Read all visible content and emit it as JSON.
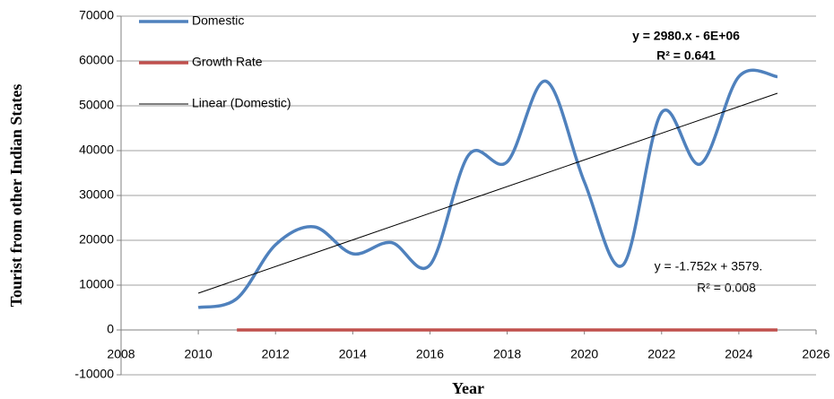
{
  "chart_data": {
    "type": "line",
    "ylabel": "Tourist from other Indian States",
    "xlabel": "Year",
    "xlim": [
      2008,
      2026
    ],
    "xticks": [
      2008,
      2010,
      2012,
      2014,
      2016,
      2018,
      2020,
      2022,
      2024,
      2026
    ],
    "ylim": [
      -10000,
      70000
    ],
    "yticks": [
      -10000,
      0,
      10000,
      20000,
      30000,
      40000,
      50000,
      60000,
      70000
    ],
    "grid": true,
    "legend": "upper left",
    "series": [
      {
        "name": "Domestic",
        "color": "#4f81bd",
        "smooth": true,
        "x": [
          2010,
          2011,
          2012,
          2013,
          2014,
          2015,
          2016,
          2017,
          2018,
          2019,
          2020,
          2021,
          2022,
          2023,
          2024,
          2025
        ],
        "values": [
          5000,
          7000,
          19000,
          23000,
          17000,
          19500,
          14500,
          39000,
          37500,
          55500,
          33000,
          14500,
          48500,
          37000,
          56500,
          56500
        ]
      },
      {
        "name": "Growth Rate",
        "color": "#c0504d",
        "smooth": true,
        "x": [
          2011,
          2012,
          2013,
          2014,
          2015,
          2016,
          2017,
          2018,
          2019,
          2020,
          2021,
          2022,
          2023,
          2024,
          2025
        ],
        "values": [
          0,
          0,
          0,
          0,
          0,
          0,
          0,
          0,
          0,
          0,
          0,
          0,
          0,
          0,
          0
        ]
      },
      {
        "name": "Linear (Domestic)",
        "color": "#000000",
        "smooth": false,
        "x": [
          2010,
          2025
        ],
        "values": [
          8200,
          52800
        ]
      }
    ],
    "annotations": [
      "y = 2980.x - 6E+06",
      "R² = 0.641",
      "y = -1.752x + 3579.",
      "R² = 0.008"
    ]
  }
}
